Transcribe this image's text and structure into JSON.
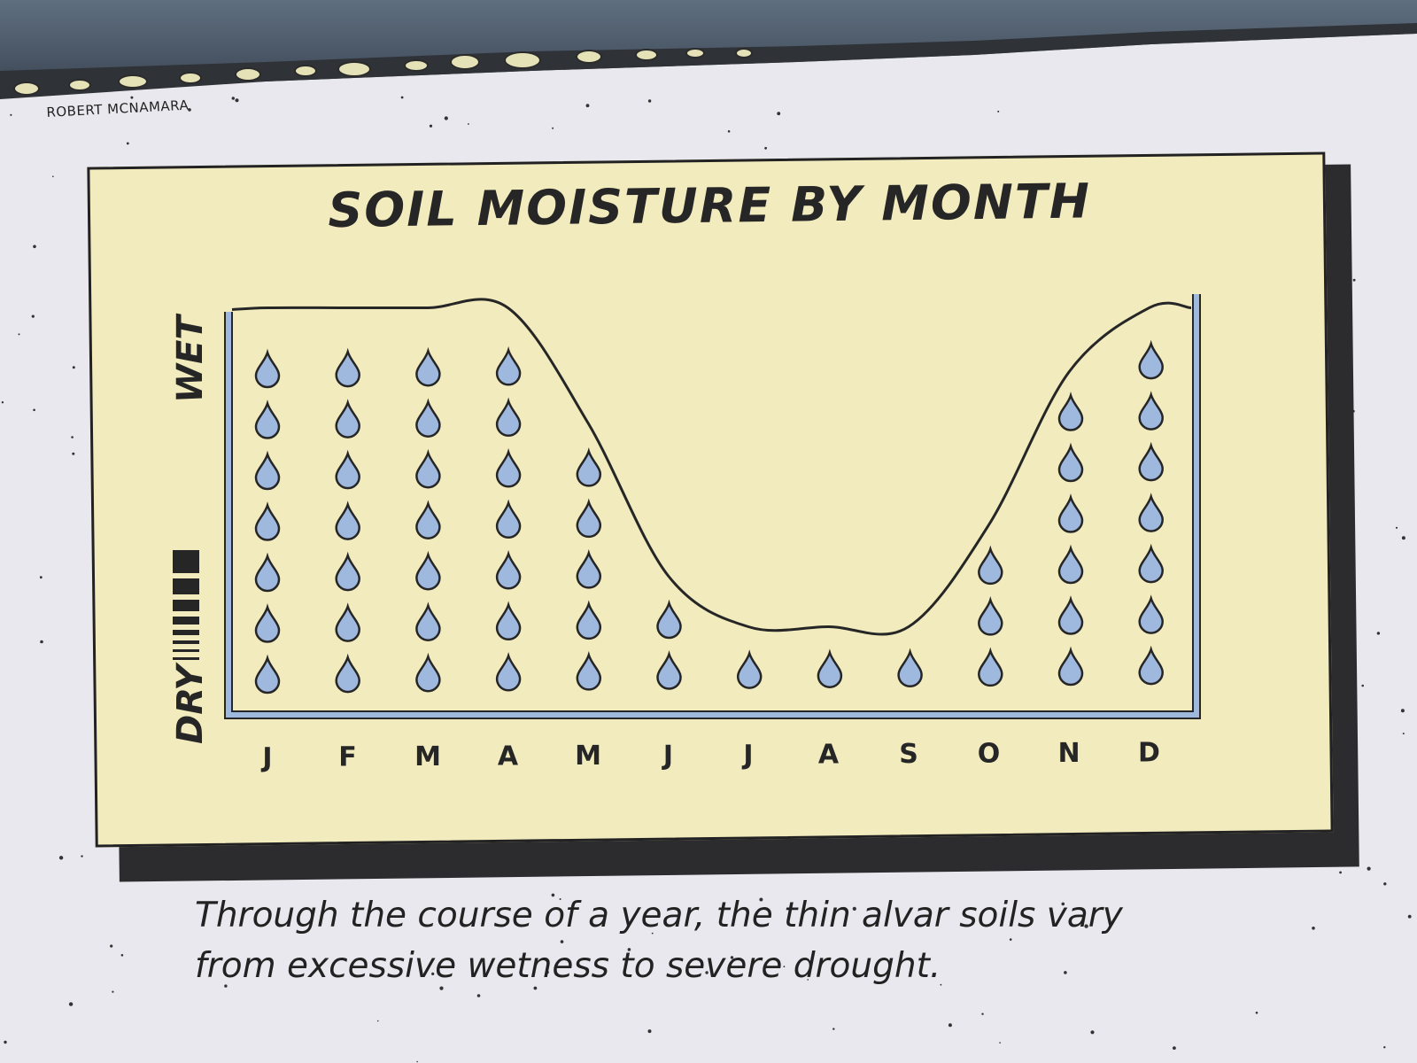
{
  "credit": "ROBERT MCNAMARA",
  "caption": {
    "line1": "Through the course of a year, the thin alvar soils vary",
    "line2": "from excessive wetness to severe drought."
  },
  "colors": {
    "panel": "#f2ebbe",
    "drop": "#9fb8de",
    "outline": "#262626",
    "tank": "#9fb8de",
    "shadow": "#2c2c2e",
    "background": "#e9e8ee"
  },
  "chart_data": {
    "type": "bar",
    "title": "SOIL MOISTURE BY MONTH",
    "ylabel_low": "DRY",
    "ylabel_high": "WET",
    "categories": [
      "J",
      "F",
      "M",
      "A",
      "M",
      "J",
      "J",
      "A",
      "S",
      "O",
      "N",
      "D"
    ],
    "values": [
      7,
      7,
      7,
      7,
      5,
      2,
      1,
      1,
      1,
      3,
      6,
      7
    ],
    "ylim": [
      0,
      7
    ],
    "grid": false,
    "legend": "none",
    "mark": "water-drop-icon"
  }
}
